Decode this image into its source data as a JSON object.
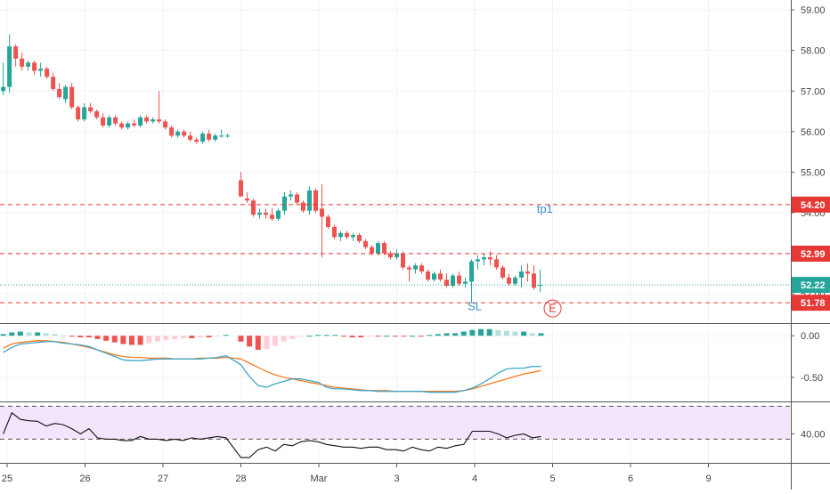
{
  "chart_data": {
    "type": "candlestick",
    "x_axis": {
      "labels": [
        {
          "t": 0,
          "label": "25"
        },
        {
          "t": 1,
          "label": "26"
        },
        {
          "t": 2,
          "label": "27"
        },
        {
          "t": 3,
          "label": "28"
        },
        {
          "t": 4,
          "label": "Mar"
        },
        {
          "t": 5,
          "label": "3"
        },
        {
          "t": 6,
          "label": "4"
        },
        {
          "t": 7,
          "label": "5"
        },
        {
          "t": 8,
          "label": "6"
        },
        {
          "t": 9,
          "label": "9"
        }
      ],
      "range": [
        -0.05,
        9.6
      ]
    },
    "price_panel": {
      "ylim": [
        51.3,
        59.2
      ],
      "ticks": [
        "59.00",
        "58.00",
        "57.00",
        "56.00",
        "55.00",
        "54.00",
        "53.00",
        "52.00"
      ],
      "tick_values": [
        59,
        58,
        57,
        56,
        55,
        54,
        53,
        52
      ],
      "levels": [
        {
          "value": 54.2,
          "label": "54.20",
          "style": "dashed",
          "color": "#e53935"
        },
        {
          "value": 52.99,
          "label": "52.99",
          "style": "dashed",
          "color": "#e53935"
        },
        {
          "value": 52.22,
          "label": "52.22",
          "style": "dotted",
          "color": "#26a69a"
        },
        {
          "value": 51.78,
          "label": "51.78",
          "style": "dashed",
          "color": "#e53935"
        }
      ],
      "annotations": [
        {
          "text": "tp1",
          "t": 6.9,
          "y": 54.0,
          "color": "#3a8fc9"
        },
        {
          "text": "SL",
          "t": 6.0,
          "y": 51.6,
          "color": "#3a8fc9"
        },
        {
          "text": "E",
          "t": 7.0,
          "y": 51.55,
          "color": "#e53935",
          "circled": true
        }
      ],
      "candles": [
        [
          -0.05,
          57.0,
          57.7,
          56.9,
          57.1
        ],
        [
          0.03,
          57.1,
          58.4,
          56.95,
          58.1
        ],
        [
          0.11,
          58.1,
          58.15,
          57.6,
          57.8
        ],
        [
          0.19,
          57.8,
          57.95,
          57.5,
          57.6
        ],
        [
          0.27,
          57.6,
          57.75,
          57.5,
          57.7
        ],
        [
          0.35,
          57.7,
          57.75,
          57.4,
          57.5
        ],
        [
          0.43,
          57.5,
          57.7,
          57.35,
          57.55
        ],
        [
          0.51,
          57.55,
          57.6,
          57.3,
          57.35
        ],
        [
          0.59,
          57.35,
          57.45,
          57.0,
          57.05
        ],
        [
          0.67,
          57.05,
          57.2,
          56.8,
          56.85
        ],
        [
          0.75,
          56.8,
          57.15,
          56.7,
          57.1
        ],
        [
          0.83,
          57.1,
          57.2,
          56.55,
          56.6
        ],
        [
          0.91,
          56.6,
          56.65,
          56.25,
          56.3
        ],
        [
          0.99,
          56.3,
          56.7,
          56.25,
          56.6
        ],
        [
          1.07,
          56.6,
          56.7,
          56.45,
          56.5
        ],
        [
          1.15,
          56.5,
          56.55,
          56.3,
          56.35
        ],
        [
          1.23,
          56.35,
          56.45,
          56.1,
          56.15
        ],
        [
          1.31,
          56.15,
          56.4,
          56.1,
          56.35
        ],
        [
          1.39,
          56.35,
          56.4,
          56.15,
          56.2
        ],
        [
          1.47,
          56.2,
          56.25,
          56.05,
          56.1
        ],
        [
          1.55,
          56.1,
          56.25,
          56.05,
          56.2
        ],
        [
          1.63,
          56.2,
          56.3,
          56.1,
          56.15
        ],
        [
          1.71,
          56.15,
          56.4,
          56.1,
          56.35
        ],
        [
          1.79,
          56.35,
          56.4,
          56.2,
          56.25
        ],
        [
          1.87,
          56.25,
          56.35,
          56.2,
          56.3
        ],
        [
          1.95,
          56.3,
          57.0,
          56.2,
          56.25
        ],
        [
          2.03,
          56.25,
          56.3,
          56.05,
          56.1
        ],
        [
          2.11,
          56.1,
          56.15,
          55.85,
          55.9
        ],
        [
          2.19,
          55.9,
          56.05,
          55.85,
          56.0
        ],
        [
          2.27,
          56.0,
          56.05,
          55.85,
          55.9
        ],
        [
          2.35,
          55.9,
          56.0,
          55.75,
          55.8
        ],
        [
          2.43,
          55.8,
          55.85,
          55.7,
          55.75
        ],
        [
          2.51,
          55.75,
          56.0,
          55.7,
          55.95
        ],
        [
          2.59,
          55.95,
          56.05,
          55.75,
          55.8
        ],
        [
          2.67,
          55.8,
          55.95,
          55.75,
          55.9
        ],
        [
          2.75,
          55.9,
          56.05,
          55.85,
          55.9
        ],
        [
          2.83,
          55.9,
          55.95,
          55.85,
          55.9
        ],
        [
          3.0,
          54.8,
          55.0,
          54.4,
          54.4
        ],
        [
          3.08,
          54.35,
          54.5,
          54.25,
          54.3
        ],
        [
          3.16,
          54.3,
          54.35,
          53.9,
          53.95
        ],
        [
          3.24,
          53.95,
          54.1,
          53.85,
          54.0
        ],
        [
          3.32,
          54.0,
          54.1,
          53.85,
          53.95
        ],
        [
          3.4,
          53.95,
          54.1,
          53.8,
          53.85
        ],
        [
          3.48,
          53.85,
          54.1,
          53.8,
          54.05
        ],
        [
          3.56,
          54.05,
          54.5,
          53.95,
          54.4
        ],
        [
          3.64,
          54.4,
          54.55,
          54.3,
          54.45
        ],
        [
          3.72,
          54.45,
          54.5,
          54.2,
          54.25
        ],
        [
          3.8,
          54.25,
          54.3,
          54.0,
          54.05
        ],
        [
          3.88,
          54.05,
          54.65,
          53.95,
          54.55
        ],
        [
          3.96,
          54.55,
          54.6,
          54.0,
          54.05
        ],
        [
          4.04,
          54.1,
          54.7,
          52.9,
          53.9
        ],
        [
          4.12,
          53.9,
          53.95,
          53.6,
          53.65
        ],
        [
          4.2,
          53.65,
          53.7,
          53.35,
          53.4
        ],
        [
          4.28,
          53.4,
          53.55,
          53.3,
          53.5
        ],
        [
          4.36,
          53.5,
          53.55,
          53.35,
          53.4
        ],
        [
          4.44,
          53.4,
          53.5,
          53.3,
          53.45
        ],
        [
          4.52,
          53.45,
          53.5,
          53.25,
          53.3
        ],
        [
          4.6,
          53.3,
          53.35,
          53.1,
          53.15
        ],
        [
          4.68,
          53.15,
          53.2,
          52.95,
          53.0
        ],
        [
          4.76,
          53.0,
          53.3,
          52.95,
          53.25
        ],
        [
          4.84,
          53.25,
          53.3,
          52.95,
          53.0
        ],
        [
          4.92,
          53.0,
          53.05,
          52.85,
          52.9
        ],
        [
          5.0,
          52.9,
          53.1,
          52.85,
          53.0
        ],
        [
          5.08,
          53.0,
          53.05,
          52.6,
          52.65
        ],
        [
          5.16,
          52.65,
          52.7,
          52.3,
          52.6
        ],
        [
          5.24,
          52.6,
          52.75,
          52.5,
          52.7
        ],
        [
          5.32,
          52.7,
          52.75,
          52.5,
          52.55
        ],
        [
          5.4,
          52.55,
          52.6,
          52.3,
          52.35
        ],
        [
          5.48,
          52.35,
          52.55,
          52.3,
          52.5
        ],
        [
          5.56,
          52.5,
          52.6,
          52.3,
          52.35
        ],
        [
          5.64,
          52.35,
          52.5,
          52.15,
          52.2
        ],
        [
          5.72,
          52.2,
          52.5,
          52.15,
          52.45
        ],
        [
          5.8,
          52.45,
          52.55,
          52.2,
          52.25
        ],
        [
          5.88,
          52.25,
          52.4,
          52.15,
          52.3
        ],
        [
          5.96,
          52.3,
          52.85,
          51.78,
          52.8
        ],
        [
          6.04,
          52.8,
          52.95,
          52.6,
          52.85
        ],
        [
          6.12,
          52.85,
          53.0,
          52.7,
          52.9
        ],
        [
          6.2,
          52.9,
          53.05,
          52.7,
          52.85
        ],
        [
          6.28,
          52.85,
          52.95,
          52.6,
          52.65
        ],
        [
          6.36,
          52.65,
          52.7,
          52.35,
          52.4
        ],
        [
          6.44,
          52.4,
          52.5,
          52.2,
          52.25
        ],
        [
          6.52,
          52.25,
          52.45,
          52.2,
          52.4
        ],
        [
          6.6,
          52.4,
          52.7,
          52.15,
          52.55
        ],
        [
          6.68,
          52.55,
          52.75,
          52.3,
          52.5
        ],
        [
          6.76,
          52.5,
          52.7,
          52.1,
          52.15
        ],
        [
          6.84,
          52.2,
          52.6,
          52.05,
          52.22
        ]
      ]
    },
    "macd_panel": {
      "ylim": [
        -0.78,
        0.12
      ],
      "ticks": [
        "0.00",
        "-0.50"
      ],
      "tick_values": [
        0.0,
        -0.5
      ],
      "t": [
        -0.05,
        0.06,
        0.17,
        0.28,
        0.39,
        0.5,
        0.61,
        0.72,
        0.83,
        0.94,
        1.05,
        1.16,
        1.27,
        1.38,
        1.49,
        1.6,
        1.71,
        1.82,
        1.93,
        2.04,
        2.15,
        2.26,
        2.37,
        2.48,
        2.59,
        2.7,
        2.81,
        3.0,
        3.11,
        3.22,
        3.33,
        3.44,
        3.55,
        3.66,
        3.77,
        3.88,
        3.99,
        4.1,
        4.21,
        4.32,
        4.43,
        4.54,
        4.65,
        4.76,
        4.87,
        4.98,
        5.09,
        5.2,
        5.31,
        5.42,
        5.53,
        5.64,
        5.75,
        5.86,
        5.97,
        6.08,
        6.19,
        6.3,
        6.41,
        6.52,
        6.63,
        6.74,
        6.85
      ],
      "macd": [
        -0.2,
        -0.14,
        -0.1,
        -0.09,
        -0.08,
        -0.07,
        -0.07,
        -0.09,
        -0.1,
        -0.11,
        -0.13,
        -0.17,
        -0.21,
        -0.25,
        -0.29,
        -0.3,
        -0.3,
        -0.29,
        -0.28,
        -0.28,
        -0.28,
        -0.28,
        -0.28,
        -0.28,
        -0.27,
        -0.26,
        -0.24,
        -0.35,
        -0.49,
        -0.6,
        -0.62,
        -0.58,
        -0.55,
        -0.52,
        -0.52,
        -0.54,
        -0.56,
        -0.62,
        -0.64,
        -0.64,
        -0.65,
        -0.66,
        -0.66,
        -0.67,
        -0.67,
        -0.67,
        -0.67,
        -0.67,
        -0.67,
        -0.68,
        -0.68,
        -0.68,
        -0.68,
        -0.66,
        -0.63,
        -0.58,
        -0.52,
        -0.45,
        -0.4,
        -0.39,
        -0.39,
        -0.37,
        -0.37
      ],
      "signal": [
        -0.15,
        -0.1,
        -0.08,
        -0.07,
        -0.06,
        -0.06,
        -0.07,
        -0.08,
        -0.1,
        -0.12,
        -0.14,
        -0.17,
        -0.2,
        -0.23,
        -0.25,
        -0.26,
        -0.26,
        -0.27,
        -0.27,
        -0.27,
        -0.28,
        -0.28,
        -0.28,
        -0.27,
        -0.27,
        -0.27,
        -0.26,
        -0.28,
        -0.33,
        -0.38,
        -0.43,
        -0.47,
        -0.5,
        -0.52,
        -0.54,
        -0.56,
        -0.58,
        -0.6,
        -0.62,
        -0.63,
        -0.64,
        -0.65,
        -0.66,
        -0.66,
        -0.66,
        -0.67,
        -0.67,
        -0.67,
        -0.67,
        -0.67,
        -0.67,
        -0.67,
        -0.67,
        -0.66,
        -0.64,
        -0.61,
        -0.58,
        -0.55,
        -0.52,
        -0.49,
        -0.46,
        -0.44,
        -0.42
      ],
      "histogram": [
        0.02,
        0.04,
        0.05,
        0.04,
        0.04,
        0.03,
        0.02,
        0.0,
        -0.01,
        -0.02,
        -0.02,
        -0.04,
        -0.06,
        -0.08,
        -0.1,
        -0.11,
        -0.11,
        -0.09,
        -0.07,
        -0.05,
        -0.04,
        -0.03,
        -0.03,
        -0.02,
        -0.02,
        -0.01,
        0.01,
        -0.07,
        -0.13,
        -0.17,
        -0.16,
        -0.12,
        -0.07,
        -0.04,
        -0.01,
        0.0,
        0.01,
        0.01,
        0.01,
        -0.01,
        -0.02,
        -0.02,
        -0.01,
        -0.01,
        0.0,
        -0.01,
        -0.01,
        0.0,
        -0.01,
        0.01,
        0.02,
        0.03,
        0.03,
        0.05,
        0.07,
        0.08,
        0.08,
        0.07,
        0.06,
        0.05,
        0.05,
        0.03,
        0.03
      ]
    },
    "rsi_panel": {
      "ylim": [
        29,
        52
      ],
      "ticks": [
        "40.00"
      ],
      "tick_values": [
        40
      ],
      "band": [
        30,
        70
      ],
      "band_lines": [
        50.5,
        38
      ],
      "t": [
        -0.05,
        0.06,
        0.17,
        0.28,
        0.39,
        0.5,
        0.61,
        0.72,
        0.83,
        0.94,
        1.05,
        1.16,
        1.27,
        1.38,
        1.49,
        1.6,
        1.71,
        1.82,
        1.93,
        2.04,
        2.15,
        2.26,
        2.37,
        2.48,
        2.59,
        2.7,
        2.81,
        3.0,
        3.11,
        3.22,
        3.33,
        3.44,
        3.55,
        3.66,
        3.77,
        3.88,
        3.99,
        4.1,
        4.21,
        4.32,
        4.43,
        4.54,
        4.65,
        4.76,
        4.87,
        4.98,
        5.09,
        5.2,
        5.31,
        5.42,
        5.53,
        5.64,
        5.75,
        5.86,
        5.97,
        6.08,
        6.19,
        6.3,
        6.41,
        6.52,
        6.63,
        6.74,
        6.85
      ],
      "values": [
        40,
        48,
        45.5,
        45,
        44.8,
        43,
        44,
        43.5,
        42,
        40,
        42,
        38.5,
        38,
        38,
        37.5,
        37.5,
        39,
        38,
        38,
        37.5,
        38,
        37.5,
        38.5,
        38,
        38.5,
        39,
        38.5,
        31,
        31,
        34,
        35,
        33.5,
        36,
        35.5,
        37,
        37.5,
        37,
        36,
        35.5,
        35,
        35,
        34.5,
        35,
        35,
        34,
        34,
        33.5,
        35,
        34,
        33.5,
        35,
        34.5,
        35.5,
        36,
        41,
        41,
        41,
        40,
        38.5,
        39.5,
        40,
        38.5,
        39
      ]
    }
  },
  "colors": {
    "bull": "#26a69a",
    "bear": "#ef5350",
    "macd_line": "#42a5c8",
    "signal_line": "#f57c20",
    "hist_up_strong": "#26a69a",
    "hist_up_weak": "#b2dfdb",
    "hist_down_strong": "#ef5350",
    "hist_down_weak": "#ffcdd2",
    "rsi_line": "#111111",
    "rsi_band": "#f3e5fb",
    "level_red": "#e53935",
    "level_teal": "#26a69a"
  }
}
